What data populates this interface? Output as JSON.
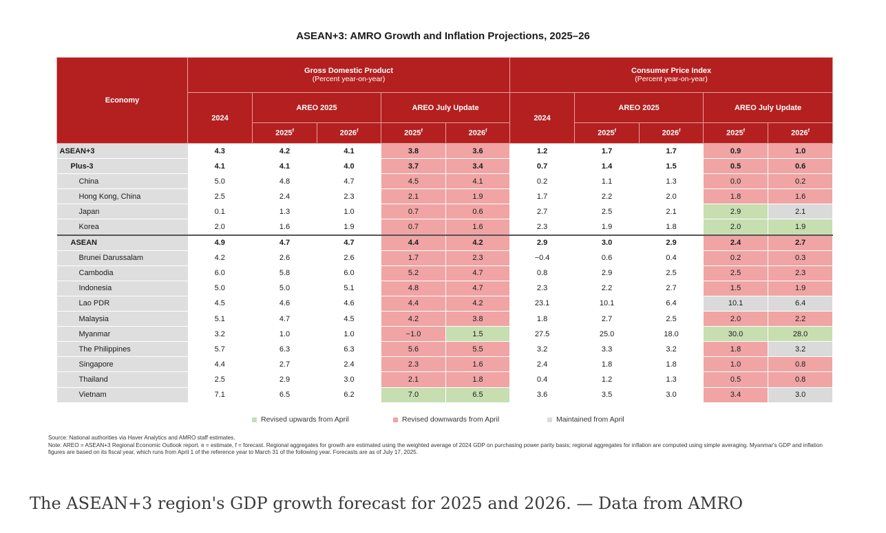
{
  "title": "ASEAN+3: AMRO Growth and Inflation Projections, 2025–26",
  "header": {
    "economy": "Economy",
    "gdp_title": "Gross Domestic Product",
    "gdp_sub": "(Percent year-on-year)",
    "cpi_title": "Consumer Price Index",
    "cpi_sub": "(Percent year-on-year)",
    "year_2024": "2024",
    "areo_2025": "AREO 2025",
    "july_update": "AREO July Update",
    "y2025": "2025",
    "y2026": "2026",
    "sup": "f"
  },
  "rows": [
    {
      "name": "ASEAN+3",
      "level": 0,
      "bold": true,
      "sep": false,
      "v": [
        "4.3",
        "4.2",
        "4.1",
        "3.8",
        "3.6",
        "1.2",
        "1.7",
        "1.7",
        "0.9",
        "1.0"
      ],
      "c": [
        "r",
        "r",
        "r",
        "r"
      ]
    },
    {
      "name": "Plus-3",
      "level": 1,
      "bold": true,
      "sep": false,
      "v": [
        "4.1",
        "4.1",
        "4.0",
        "3.7",
        "3.4",
        "0.7",
        "1.4",
        "1.5",
        "0.5",
        "0.6"
      ],
      "c": [
        "r",
        "r",
        "r",
        "r"
      ]
    },
    {
      "name": "China",
      "level": 2,
      "bold": false,
      "sep": false,
      "v": [
        "5.0",
        "4.8",
        "4.7",
        "4.5",
        "4.1",
        "0.2",
        "1.1",
        "1.3",
        "0.0",
        "0.2"
      ],
      "c": [
        "r",
        "r",
        "r",
        "r"
      ]
    },
    {
      "name": "Hong Kong, China",
      "level": 2,
      "bold": false,
      "sep": false,
      "v": [
        "2.5",
        "2.4",
        "2.3",
        "2.1",
        "1.9",
        "1.7",
        "2.2",
        "2.0",
        "1.8",
        "1.6"
      ],
      "c": [
        "r",
        "r",
        "r",
        "r"
      ]
    },
    {
      "name": "Japan",
      "level": 2,
      "bold": false,
      "sep": false,
      "v": [
        "0.1",
        "1.3",
        "1.0",
        "0.7",
        "0.6",
        "2.7",
        "2.5",
        "2.1",
        "2.9",
        "2.1"
      ],
      "c": [
        "r",
        "r",
        "g",
        "m"
      ]
    },
    {
      "name": "Korea",
      "level": 2,
      "bold": false,
      "sep": false,
      "v": [
        "2.0",
        "1.6",
        "1.9",
        "0.7",
        "1.6",
        "2.3",
        "1.9",
        "1.8",
        "2.0",
        "1.9"
      ],
      "c": [
        "r",
        "r",
        "g",
        "g"
      ]
    },
    {
      "name": "ASEAN",
      "level": 1,
      "bold": true,
      "sep": true,
      "v": [
        "4.9",
        "4.7",
        "4.7",
        "4.4",
        "4.2",
        "2.9",
        "3.0",
        "2.9",
        "2.4",
        "2.7"
      ],
      "c": [
        "r",
        "r",
        "r",
        "r"
      ]
    },
    {
      "name": "Brunei Darussalam",
      "level": 2,
      "bold": false,
      "sep": false,
      "v": [
        "4.2",
        "2.6",
        "2.6",
        "1.7",
        "2.3",
        "−0.4",
        "0.6",
        "0.4",
        "0.2",
        "0.3"
      ],
      "c": [
        "r",
        "r",
        "r",
        "r"
      ]
    },
    {
      "name": "Cambodia",
      "level": 2,
      "bold": false,
      "sep": false,
      "v": [
        "6.0",
        "5.8",
        "6.0",
        "5.2",
        "4.7",
        "0.8",
        "2.9",
        "2.5",
        "2.5",
        "2.3"
      ],
      "c": [
        "r",
        "r",
        "r",
        "r"
      ]
    },
    {
      "name": "Indonesia",
      "level": 2,
      "bold": false,
      "sep": false,
      "v": [
        "5.0",
        "5.0",
        "5.1",
        "4.8",
        "4.7",
        "2.3",
        "2.2",
        "2.7",
        "1.5",
        "1.9"
      ],
      "c": [
        "r",
        "r",
        "r",
        "r"
      ]
    },
    {
      "name": "Lao PDR",
      "level": 2,
      "bold": false,
      "sep": false,
      "v": [
        "4.5",
        "4.6",
        "4.6",
        "4.4",
        "4.2",
        "23.1",
        "10.1",
        "6.4",
        "10.1",
        "6.4"
      ],
      "c": [
        "r",
        "r",
        "m",
        "m"
      ]
    },
    {
      "name": "Malaysia",
      "level": 2,
      "bold": false,
      "sep": false,
      "v": [
        "5.1",
        "4.7",
        "4.5",
        "4.2",
        "3.8",
        "1.8",
        "2.7",
        "2.5",
        "2.0",
        "2.2"
      ],
      "c": [
        "r",
        "r",
        "r",
        "r"
      ]
    },
    {
      "name": "Myanmar",
      "level": 2,
      "bold": false,
      "sep": false,
      "v": [
        "3.2",
        "1.0",
        "1.0",
        "−1.0",
        "1.5",
        "27.5",
        "25.0",
        "18.0",
        "30.0",
        "28.0"
      ],
      "c": [
        "r",
        "g",
        "g",
        "g"
      ]
    },
    {
      "name": "The Philippines",
      "level": 2,
      "bold": false,
      "sep": false,
      "v": [
        "5.7",
        "6.3",
        "6.3",
        "5.6",
        "5.5",
        "3.2",
        "3.3",
        "3.2",
        "1.8",
        "3.2"
      ],
      "c": [
        "r",
        "r",
        "r",
        "m"
      ]
    },
    {
      "name": "Singapore",
      "level": 2,
      "bold": false,
      "sep": false,
      "v": [
        "4.4",
        "2.7",
        "2.4",
        "2.3",
        "1.6",
        "2.4",
        "1.8",
        "1.8",
        "1.0",
        "0.8"
      ],
      "c": [
        "r",
        "r",
        "r",
        "r"
      ]
    },
    {
      "name": "Thailand",
      "level": 2,
      "bold": false,
      "sep": false,
      "v": [
        "2.5",
        "2.9",
        "3.0",
        "2.1",
        "1.8",
        "0.4",
        "1.2",
        "1.3",
        "0.5",
        "0.8"
      ],
      "c": [
        "r",
        "r",
        "r",
        "r"
      ]
    },
    {
      "name": "Vietnam",
      "level": 2,
      "bold": false,
      "sep": false,
      "v": [
        "7.1",
        "6.5",
        "6.2",
        "7.0",
        "6.5",
        "3.6",
        "3.5",
        "3.0",
        "3.4",
        "3.0"
      ],
      "c": [
        "g",
        "g",
        "r",
        "m"
      ]
    }
  ],
  "legend": {
    "up": "Revised upwards from April",
    "down": "Revised downwards from April",
    "same": "Maintained from April",
    "colors": {
      "up": "#c6deb0",
      "down": "#f0a4a4",
      "same": "#dadada",
      "header": "#b3201f"
    }
  },
  "notes": {
    "source": "Source: National authorities via Haver Analytics and AMRO staff estimates.",
    "note": "Note: AREO = ASEAN+3 Regional Economic Outlook report. e = estimate, f = forecast. Regional aggregates for growth are estimated using the weighted average of 2024 GDP on purchasing power parity basis; regional aggregates for inflation are computed using simple averaging. Myanmar's GDP and inflation figures are based on its fiscal year, which runs from April 1 of the reference year to March 31 of the following year. Forecasts are as of July 17, 2025."
  },
  "caption": "The ASEAN+3 region's GDP growth forecast for 2025 and 2026. — Data from AMRO"
}
